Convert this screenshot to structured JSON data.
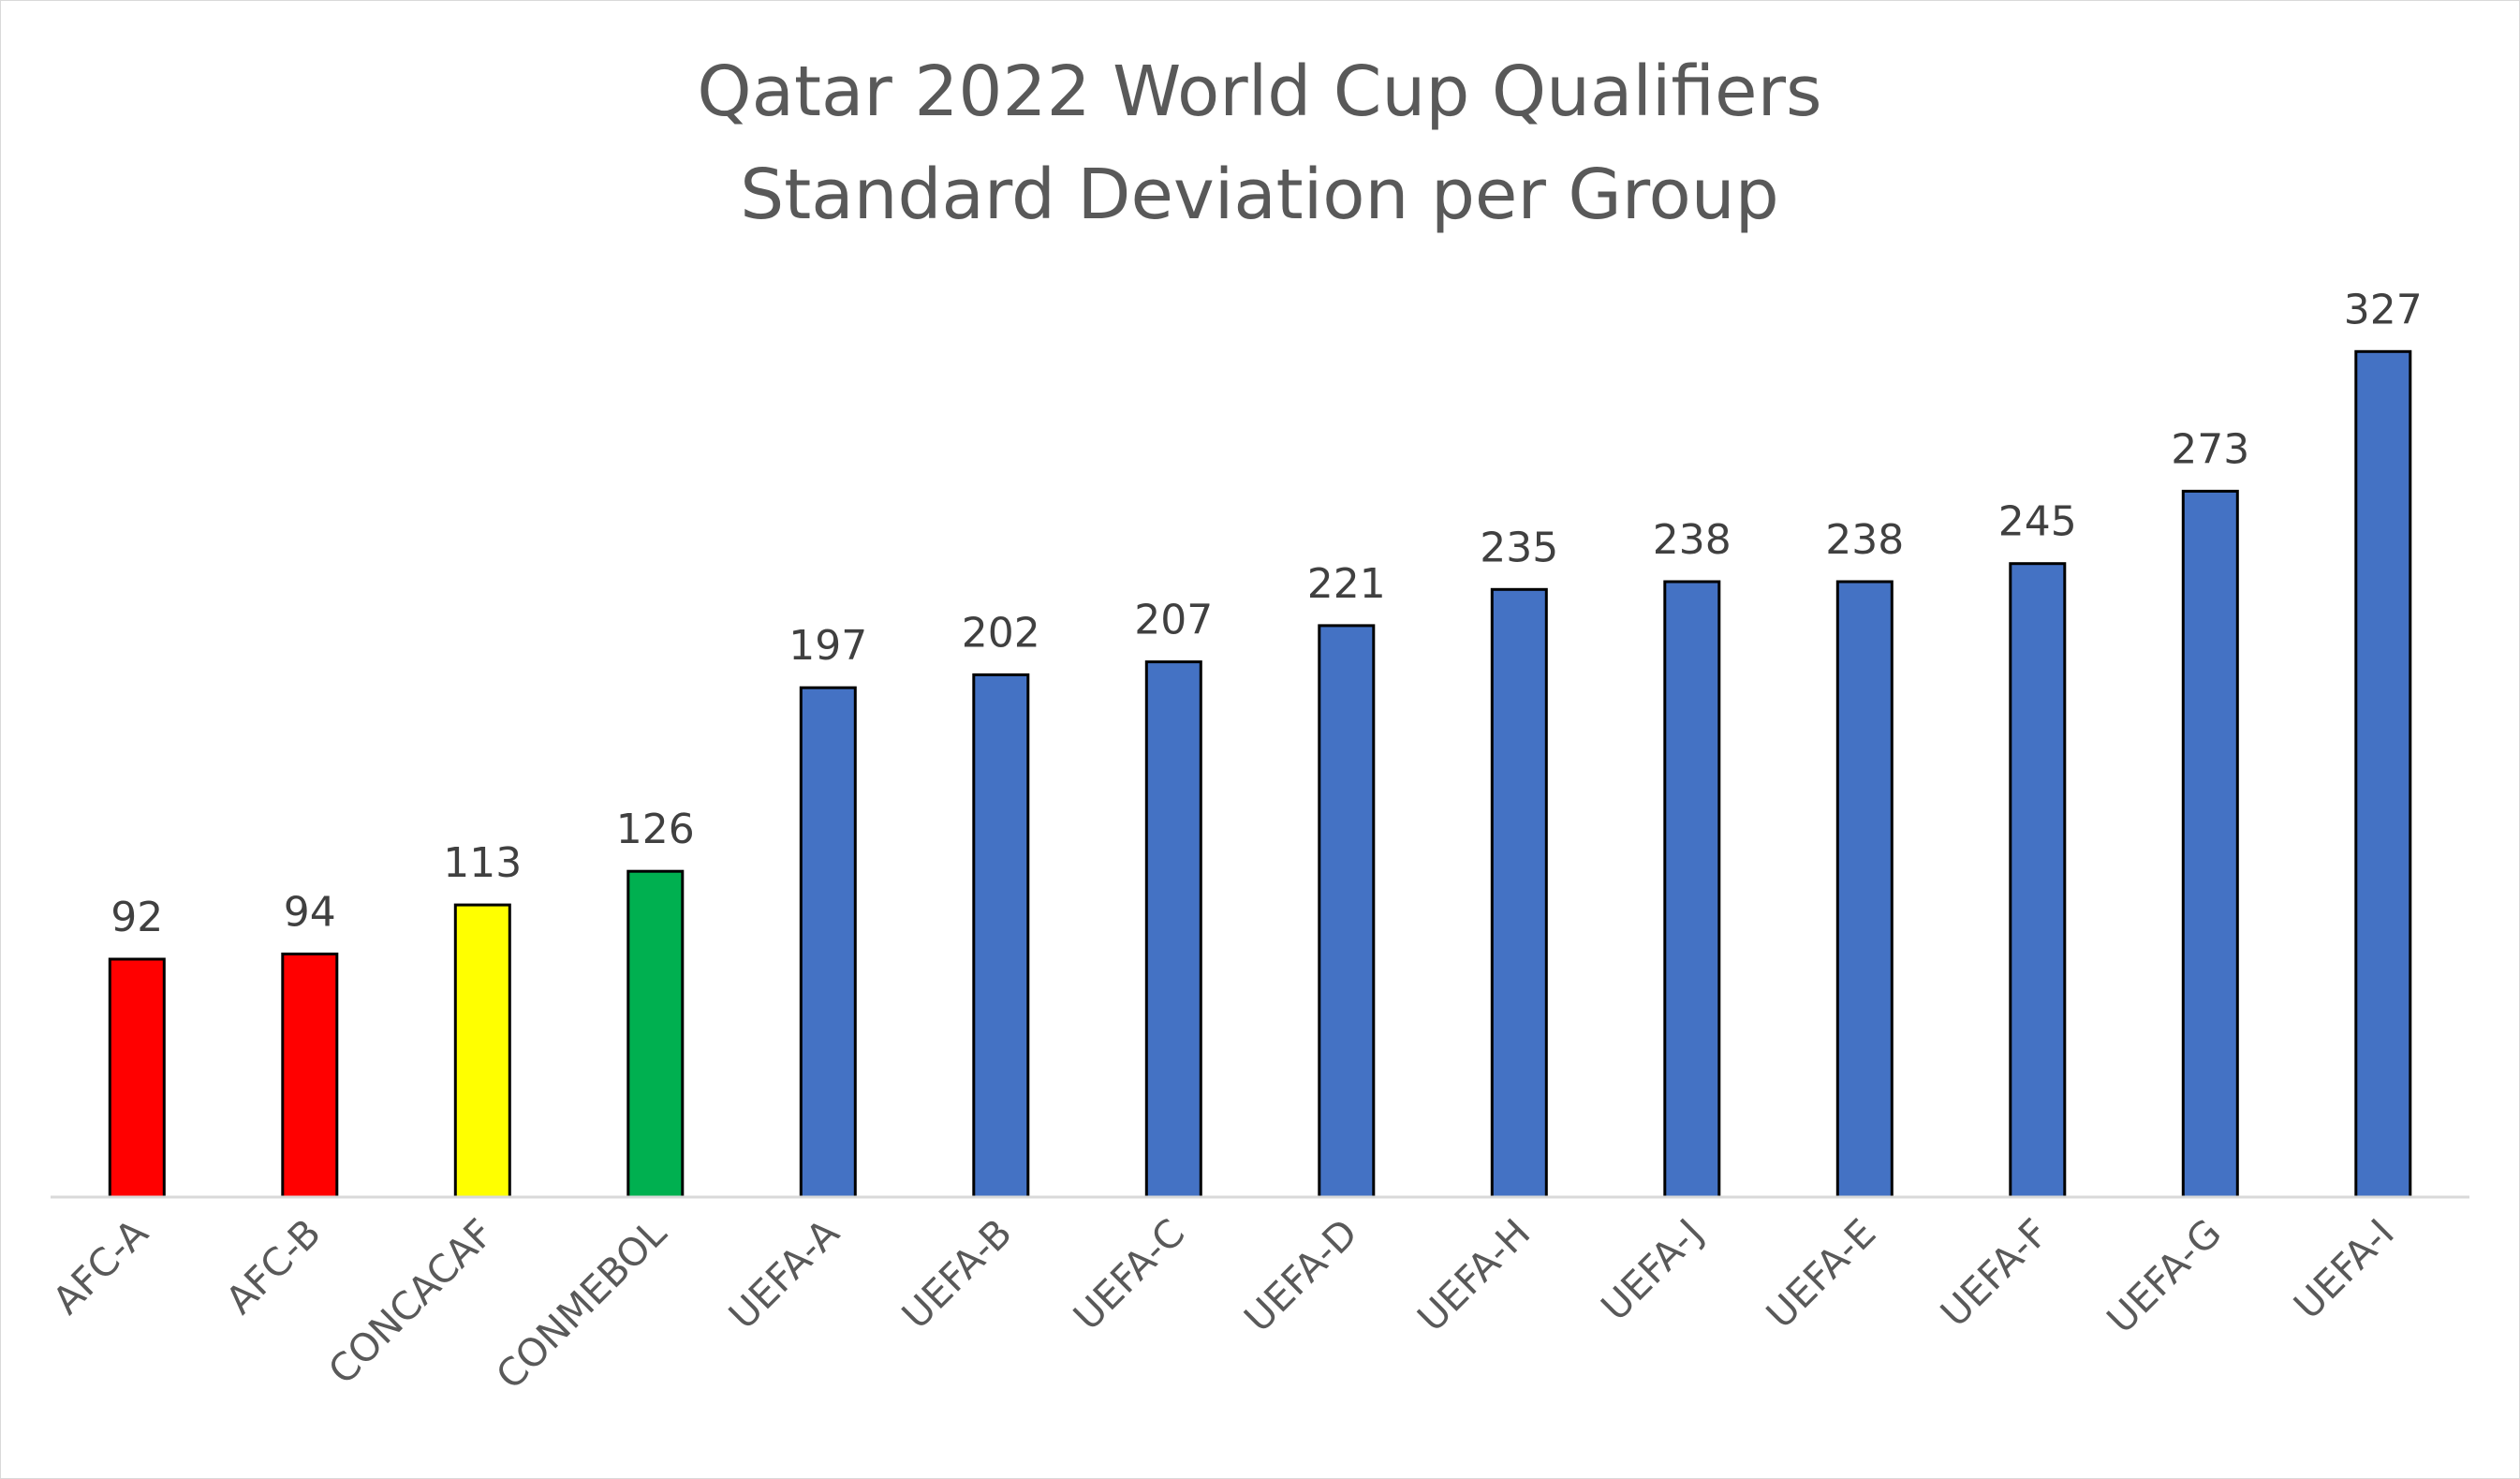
{
  "chart_data": {
    "type": "bar",
    "title": "Qatar 2022 World Cup Qualifiers",
    "subtitle": "Standard Deviation per Group",
    "xlabel": "",
    "ylabel": "",
    "ylim": [
      0,
      340
    ],
    "grid": false,
    "legend": "none",
    "categories": [
      "AFC-A",
      "AFC-B",
      "CONCACAF",
      "CONMEBOL",
      "UEFA-A",
      "UEFA-B",
      "UEFA-C",
      "UEFA-D",
      "UEFA-H",
      "UEFA-J",
      "UEFA-E",
      "UEFA-F",
      "UEFA-G",
      "UEFA-I"
    ],
    "values": [
      92,
      94,
      113,
      126,
      197,
      202,
      207,
      221,
      235,
      238,
      238,
      245,
      273,
      327
    ],
    "value_labels": [
      "92",
      "94",
      "113",
      "126",
      "197",
      "202",
      "207",
      "221",
      "235",
      "238",
      "238",
      "245",
      "273",
      "327"
    ],
    "colors": [
      "#ff0000",
      "#ff0000",
      "#ffff00",
      "#00b050",
      "#4472c4",
      "#4472c4",
      "#4472c4",
      "#4472c4",
      "#4472c4",
      "#4472c4",
      "#4472c4",
      "#4472c4",
      "#4472c4",
      "#4472c4"
    ],
    "axis_color": "#d9d9d9",
    "bar_border_color": "#000000"
  }
}
